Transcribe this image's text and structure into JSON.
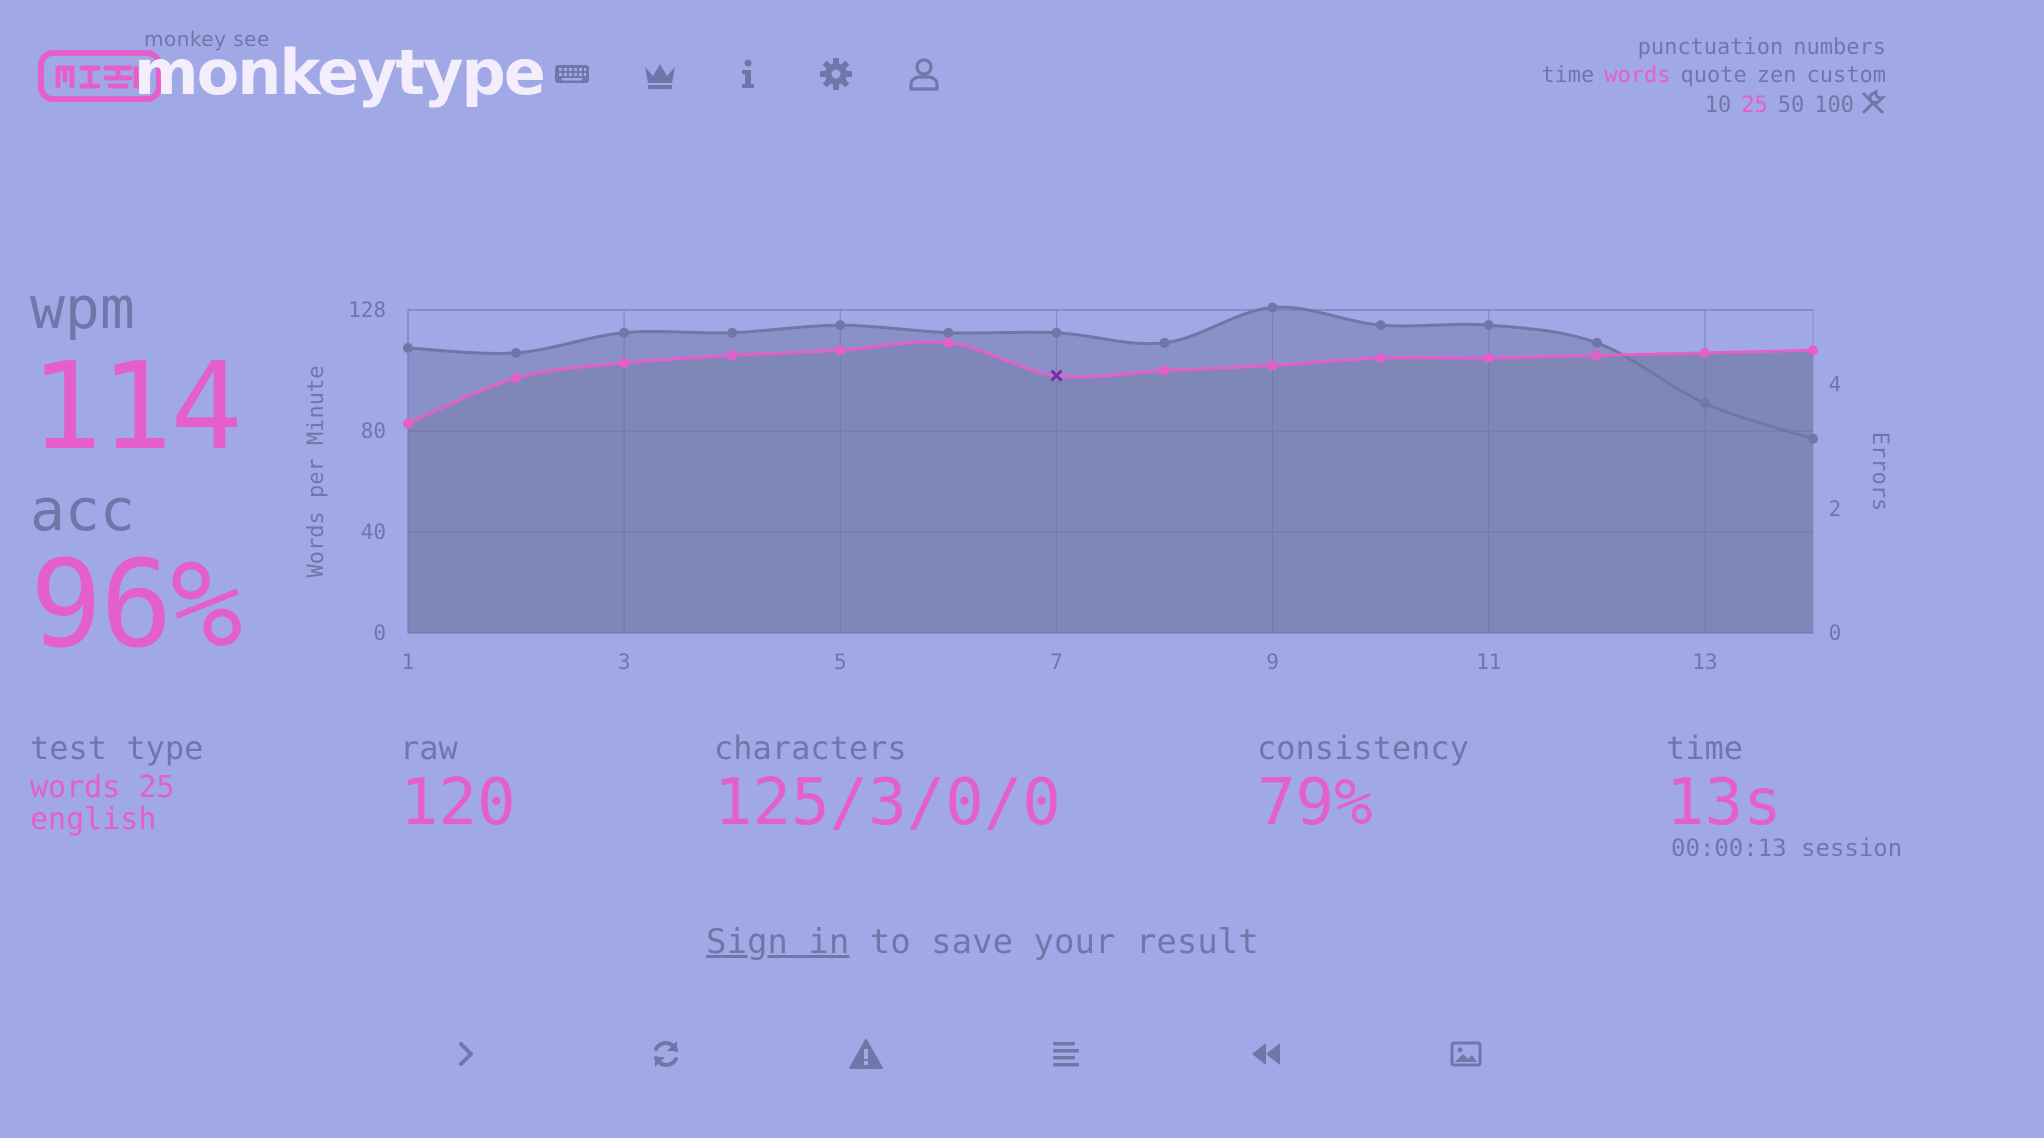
{
  "header": {
    "logo_small": "monkey see",
    "logo_text": "monkeytype",
    "nav": [
      "keyboard-icon",
      "crown-icon",
      "info-icon",
      "gear-icon",
      "user-icon"
    ]
  },
  "config": {
    "row1": [
      "punctuation",
      "numbers"
    ],
    "row2": [
      {
        "label": "time",
        "active": false
      },
      {
        "label": "words",
        "active": true
      },
      {
        "label": "quote",
        "active": false
      },
      {
        "label": "zen",
        "active": false
      },
      {
        "label": "custom",
        "active": false
      }
    ],
    "row3": [
      {
        "label": "10",
        "active": false
      },
      {
        "label": "25",
        "active": true
      },
      {
        "label": "50",
        "active": false
      },
      {
        "label": "100",
        "active": false
      }
    ],
    "custom_icon": "tools-icon"
  },
  "stats": {
    "wpm_label": "wpm",
    "wpm": "114",
    "acc_label": "acc",
    "acc": "96%"
  },
  "chart_data": {
    "type": "line",
    "x": [
      1,
      2,
      3,
      4,
      5,
      6,
      7,
      8,
      9,
      10,
      11,
      12,
      13,
      14
    ],
    "x_ticks": [
      "1",
      "3",
      "5",
      "7",
      "9",
      "11",
      "13"
    ],
    "series": [
      {
        "values": [
          113,
          111,
          119,
          119,
          122,
          119,
          119,
          115,
          129,
          122,
          122,
          115,
          91,
          77
        ],
        "color": "#6f76a8"
      },
      {
        "values": [
          83,
          101,
          107,
          110,
          112,
          115,
          102,
          104,
          106,
          109,
          109,
          110,
          111,
          112
        ],
        "color": "#e45fc8"
      }
    ],
    "error_points": [
      {
        "x": 7,
        "y": 102
      }
    ],
    "ylabel": "Words per Minute",
    "y2label": "Errors",
    "ylim": [
      0,
      128
    ],
    "y_ticks": [
      "0",
      "40",
      "80",
      "128"
    ],
    "y2_ticks": [
      "0",
      "2",
      "4"
    ],
    "y2lim": [
      0,
      5.2
    ],
    "grid": true
  },
  "bottom": {
    "test_type_label": "test type",
    "test_type_1": "words 25",
    "test_type_2": "english",
    "raw_label": "raw",
    "raw": "120",
    "characters_label": "characters",
    "characters": "125/3/0/0",
    "consistency_label": "consistency",
    "consistency": "79%",
    "time_label": "time",
    "time": "13s",
    "session": "00:00:13 session"
  },
  "signin": {
    "link": "Sign in",
    "rest": " to save your result"
  },
  "actions": [
    "next-test-icon",
    "restart-icon",
    "warning-icon",
    "word-history-icon",
    "replay-icon",
    "screenshot-icon"
  ]
}
